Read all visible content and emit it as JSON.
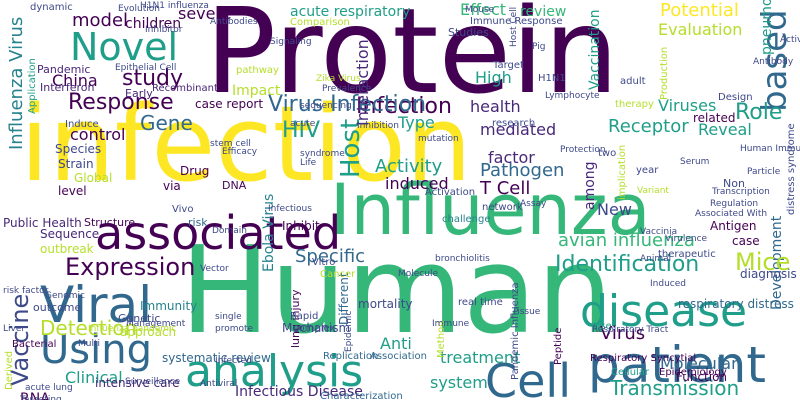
{
  "words": [
    "Protein",
    "infection",
    "Human",
    "Influenza",
    "Viral",
    "associated",
    "analysis",
    "patient",
    "Cell",
    "disease",
    "Using",
    "Novel",
    "based",
    "Response",
    "Expression",
    "Vaccine",
    "Infection",
    "Virus Infection",
    "Host",
    "Gene",
    "HIV",
    "study",
    "model",
    "Role",
    "Receptor",
    "Identification",
    "Development",
    "Mice",
    "Activity",
    "Pathogen",
    "T Cell",
    "Detection",
    "Transmission",
    "Influenza Virus",
    "China",
    "Specific",
    "avian influenza",
    "induced",
    "factor",
    "Effect",
    "Type",
    "High",
    "mediated",
    "health",
    "Viruses",
    "Reveal",
    "Molecular",
    "Vaccination",
    "Potential",
    "Evaluation",
    "pneumonia",
    "acute respiratory",
    "severe",
    "children",
    "Evolution",
    "dynamic",
    "H1N1",
    "Immune Response",
    "Studies",
    "review",
    "Comparison",
    "Impact",
    "pathway",
    "Interaction",
    "control",
    "among",
    "Clinical",
    "RNA",
    "Anti",
    "treatment",
    "system",
    "Infectious Disease",
    "Replication",
    "Association",
    "Characterization",
    "intensive care",
    "systematic review",
    "New",
    "Virus",
    "Antigen",
    "case",
    "diagnosis",
    "respiratory distress",
    "distress syndrome",
    "Ebola Virus",
    "Drug",
    "Vivo",
    "Strain",
    "Species",
    "Global",
    "level",
    "Public Health",
    "Sequence",
    "outbreak",
    "Structure",
    "risk",
    "Inhibit",
    "Different",
    "mortality",
    "lung injury",
    "Mechanism",
    "Immunity",
    "approach",
    "Genetic",
    "outcome",
    "Bacterial",
    "Derived",
    "Peptide",
    "Pandemic Influenza",
    "year",
    "Non",
    "Use",
    "Cellular",
    "Function",
    "Application",
    "Interferon",
    "Pandemic",
    "Early",
    "Recombinant",
    "via",
    "DNA",
    "Vitro",
    "Cancer",
    "challenge",
    "Activation",
    "network",
    "two",
    "therapeutic",
    "related",
    "therapy",
    "adult",
    "Target",
    "research",
    "case report",
    "Induce",
    "Production",
    "Design",
    "implication",
    "Method",
    "real time",
    "Respiratory Syncytial",
    "Epidemiology",
    "Rapid",
    "complex",
    "Epidemic",
    "Surveillance",
    "Antiviral",
    "Targeting",
    "acute lung",
    "Liver",
    "promote",
    "Infected",
    "single",
    "stem cell",
    "risk factor",
    "Life",
    "Zika Virus",
    "Prevalence",
    "Inhibitor",
    "Epithelial Cell",
    "Mouse",
    "H1N1 influenza",
    "Antibodies",
    "Antibody",
    "Particle",
    "Variant",
    "Inhibition",
    "mutation",
    "Genomic",
    "Efficacy",
    "Domain",
    "Management",
    "Multi",
    "Influenza pandemic",
    "Respiratory Tract",
    "Human Immunodeficiency",
    "Associated With",
    "Animal",
    "Pig",
    "Host Cell",
    "Signaling",
    "acute",
    "syndrome",
    "Induced",
    "Virulence",
    "Regulation",
    "Assay",
    "Vector",
    "Infectious",
    "Molecule",
    "bronchiolitis",
    "Immune",
    "Tissue",
    "Protection",
    "Serum",
    "Transcription",
    "Activity Against",
    "sequencing",
    "Vaccinia",
    "Lymphocyte",
    "Gene Expression",
    "Mutant",
    "Modulate",
    "Component",
    "Coronavirus",
    "Enhance",
    "Pathogenesis",
    "Epitope",
    "Community",
    "Cytokine"
  ],
  "palette": {
    "dark_purple": "#440154",
    "purple": "#482878",
    "indigo": "#3e4989",
    "blue": "#31688e",
    "teal_blue": "#26828e",
    "teal": "#1f9e89",
    "green": "#35b779",
    "lime": "#6ece58",
    "yellow_green": "#b5de2b",
    "yellow": "#fde725",
    "background": "#ffffff"
  }
}
